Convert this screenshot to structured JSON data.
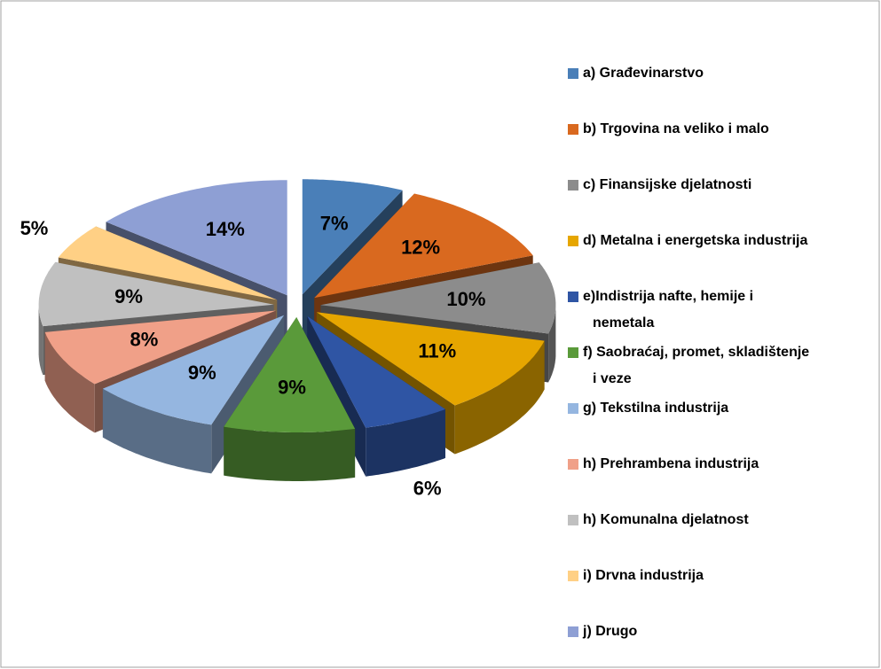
{
  "chart_data": {
    "type": "pie3d",
    "categories": [
      "a) Građevinarstvo",
      "b) Trgovina na veliko i malo",
      "c) Finansijske djelatnosti",
      "d) Metalna i energetska industrija",
      "e)Indistrija nafte, hemije i nemetala",
      "f) Saobraćaj, promet, skladištenje i veze",
      "g) Tekstilna industrija",
      "h) Prehrambena industrija",
      "h) Komunalna djelatnost",
      "i) Drvna industrija",
      "j) Drugo"
    ],
    "values": [
      7,
      12,
      10,
      11,
      6,
      9,
      9,
      8,
      9,
      5,
      14
    ],
    "value_labels": [
      "7%",
      "12%",
      "10%",
      "11%",
      "6%",
      "9%",
      "9%",
      "8%",
      "9%",
      "5%",
      "14%"
    ],
    "colors": [
      "#4a7fb8",
      "#d9691f",
      "#8c8c8c",
      "#e6a600",
      "#2f55a4",
      "#5a9a3a",
      "#95b6e0",
      "#f0a088",
      "#c0c0c0",
      "#ffd085",
      "#8e9fd4"
    ],
    "legend": "right"
  }
}
